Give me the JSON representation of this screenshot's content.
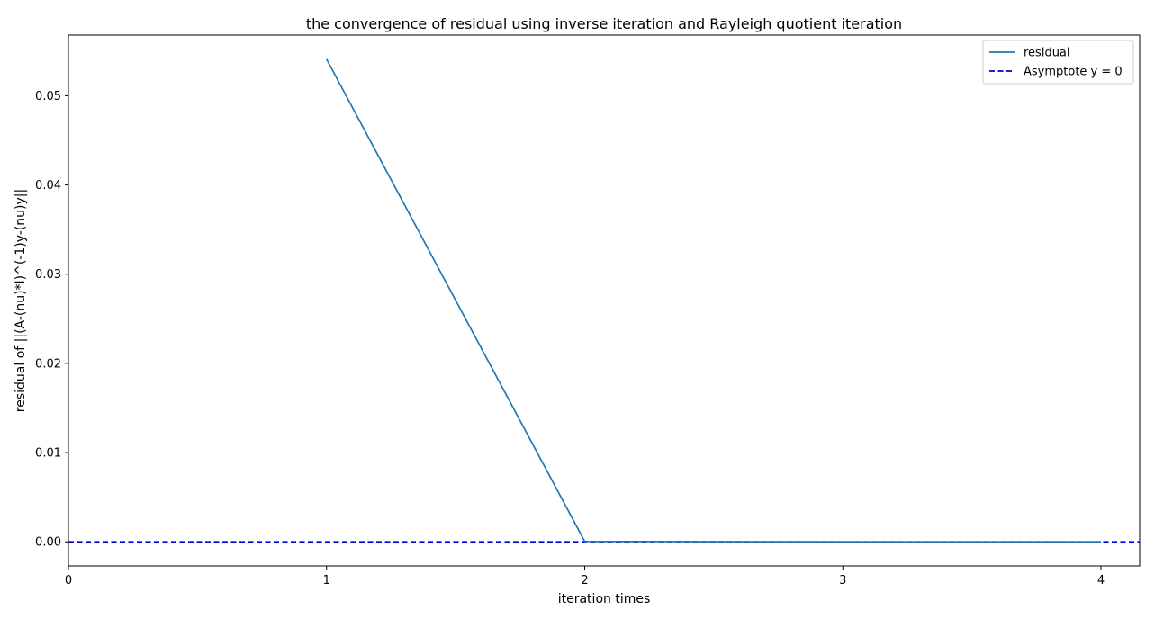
{
  "chart_data": {
    "type": "line",
    "title": "the convergence of residual using inverse iteration and Rayleigh quotient iteration",
    "xlabel": "iteration times",
    "ylabel": "residual of ||(A-(nu)*I)^(-1)y-(nu)y||",
    "xlim": [
      0,
      4.15
    ],
    "ylim": [
      -0.0027,
      0.0568
    ],
    "xticks": [
      0,
      1,
      2,
      3,
      4
    ],
    "xtick_labels": [
      "0",
      "1",
      "2",
      "3",
      "4"
    ],
    "yticks": [
      0,
      0.01,
      0.02,
      0.03,
      0.04,
      0.05
    ],
    "ytick_labels": [
      "0.00",
      "0.01",
      "0.02",
      "0.03",
      "0.04",
      "0.05"
    ],
    "grid": false,
    "legend_position": "top-right",
    "series": [
      {
        "name": "residual",
        "style": "solid",
        "color": "#1f77b4",
        "x": [
          1,
          2,
          3,
          4
        ],
        "y": [
          0.0541,
          5e-05,
          0.0,
          0.0
        ]
      }
    ],
    "hlines": [
      {
        "name": "Asymptote y = 0",
        "y": 0,
        "style": "dashed",
        "color": "#0000cc"
      }
    ]
  }
}
